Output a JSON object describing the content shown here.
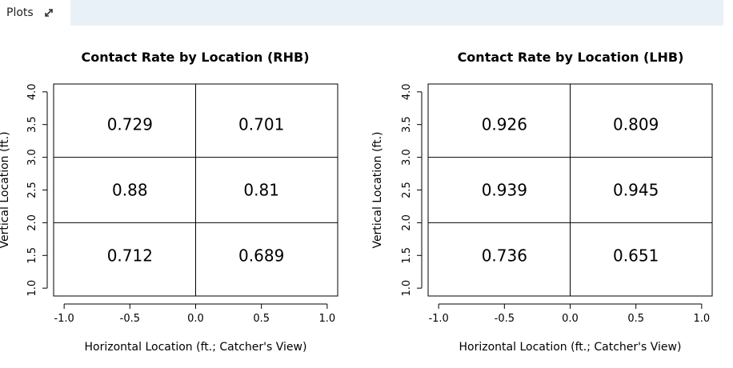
{
  "pane": {
    "tab_label": "Plots",
    "expand_icon": "expand-arrows-icon"
  },
  "chart_data": [
    {
      "type": "table",
      "title": "Contact Rate by Location (RHB)",
      "xlabel": "Horizontal Location (ft.; Catcher's View)",
      "ylabel": "Vertical Location (ft.)",
      "xlim": [
        -1.0,
        1.0
      ],
      "ylim": [
        1.0,
        4.0
      ],
      "x_ticks": [
        "-1.0",
        "-0.5",
        "0.0",
        "0.5",
        "1.0"
      ],
      "y_ticks": [
        "1.0",
        "1.5",
        "2.0",
        "2.5",
        "3.0",
        "3.5",
        "4.0"
      ],
      "x_breaks": [
        -1.0,
        0.0,
        1.0
      ],
      "y_breaks": [
        1.0,
        2.0,
        3.0,
        4.0
      ],
      "cells": [
        {
          "x": -0.5,
          "y": 3.5,
          "label": "0.729"
        },
        {
          "x": 0.5,
          "y": 3.5,
          "label": "0.701"
        },
        {
          "x": -0.5,
          "y": 2.5,
          "label": "0.88"
        },
        {
          "x": 0.5,
          "y": 2.5,
          "label": "0.81"
        },
        {
          "x": -0.5,
          "y": 1.5,
          "label": "0.712"
        },
        {
          "x": 0.5,
          "y": 1.5,
          "label": "0.689"
        }
      ]
    },
    {
      "type": "table",
      "title": "Contact Rate by Location (LHB)",
      "xlabel": "Horizontal Location (ft.; Catcher's View)",
      "ylabel": "Vertical Location (ft.)",
      "xlim": [
        -1.0,
        1.0
      ],
      "ylim": [
        1.0,
        4.0
      ],
      "x_ticks": [
        "-1.0",
        "-0.5",
        "0.0",
        "0.5",
        "1.0"
      ],
      "y_ticks": [
        "1.0",
        "1.5",
        "2.0",
        "2.5",
        "3.0",
        "3.5",
        "4.0"
      ],
      "x_breaks": [
        -1.0,
        0.0,
        1.0
      ],
      "y_breaks": [
        1.0,
        2.0,
        3.0,
        4.0
      ],
      "cells": [
        {
          "x": -0.5,
          "y": 3.5,
          "label": "0.926"
        },
        {
          "x": 0.5,
          "y": 3.5,
          "label": "0.809"
        },
        {
          "x": -0.5,
          "y": 2.5,
          "label": "0.939"
        },
        {
          "x": 0.5,
          "y": 2.5,
          "label": "0.945"
        },
        {
          "x": -0.5,
          "y": 1.5,
          "label": "0.736"
        },
        {
          "x": 0.5,
          "y": 1.5,
          "label": "0.651"
        }
      ]
    }
  ]
}
